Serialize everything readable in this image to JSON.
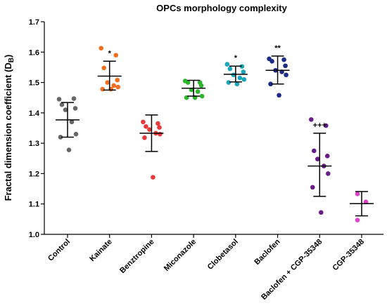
{
  "chart_data": {
    "type": "scatter",
    "title": "OPCs morphology complexity",
    "ylabel": "Fractal dimension coefficient (D",
    "ylabel_sub": "B",
    "ylabel_tail": ")",
    "ylim": [
      1.0,
      1.7
    ],
    "yticks": [
      "1.0",
      "1.1",
      "1.2",
      "1.3",
      "1.4",
      "1.5",
      "1.6",
      "1.7"
    ],
    "grid": false,
    "categories": [
      "Control",
      "Kainate",
      "Benztropine",
      "Miconazole",
      "Clobetasol",
      "Baclofen",
      "Baclofen + CGP-35348",
      "CGP-35348"
    ],
    "groups": [
      {
        "label": "Control",
        "color": "#666666",
        "mean": 1.377,
        "sd_low": 1.32,
        "sd_high": 1.434,
        "annotation": "",
        "points": [
          1.445,
          1.447,
          1.427,
          1.415,
          1.41,
          1.37,
          1.33,
          1.32,
          1.278
        ]
      },
      {
        "label": "Kainate",
        "color": "#f07020",
        "mean": 1.521,
        "sd_low": 1.475,
        "sd_high": 1.57,
        "annotation": "*",
        "points": [
          1.613,
          1.59,
          1.548,
          1.508,
          1.5,
          1.49,
          1.485,
          1.478,
          1.478
        ]
      },
      {
        "label": "Benztropine",
        "color": "#e83a3a",
        "mean": 1.333,
        "sd_low": 1.273,
        "sd_high": 1.393,
        "annotation": "",
        "points": [
          1.37,
          1.365,
          1.355,
          1.352,
          1.345,
          1.333,
          1.33,
          1.318,
          1.188
        ]
      },
      {
        "label": "Miconazole",
        "color": "#2db52d",
        "mean": 1.481,
        "sd_low": 1.455,
        "sd_high": 1.507,
        "annotation": "",
        "points": [
          1.505,
          1.5,
          1.5,
          1.49,
          1.476,
          1.47,
          1.455,
          1.45,
          1.45
        ]
      },
      {
        "label": "Clobetasol",
        "color": "#1aa5b8",
        "mean": 1.527,
        "sd_low": 1.502,
        "sd_high": 1.554,
        "annotation": "*",
        "points": [
          1.56,
          1.553,
          1.545,
          1.535,
          1.525,
          1.515,
          1.51,
          1.5,
          1.495
        ]
      },
      {
        "label": "Baclofen",
        "color": "#1c2a8a",
        "mean": 1.54,
        "sd_low": 1.495,
        "sd_high": 1.587,
        "annotation": "**",
        "points": [
          1.578,
          1.575,
          1.57,
          1.555,
          1.54,
          1.535,
          1.525,
          1.495,
          1.458
        ]
      },
      {
        "label": "Baclofen + CGP-35348",
        "color": "#6a1b8a",
        "mean": 1.225,
        "sd_low": 1.125,
        "sd_high": 1.333,
        "annotation": "+++",
        "points": [
          1.378,
          1.358,
          1.275,
          1.258,
          1.248,
          1.225,
          1.2,
          1.155,
          1.072
        ]
      },
      {
        "label": "CGP-35348",
        "color": "#e040c8",
        "mean": 1.101,
        "sd_low": 1.061,
        "sd_high": 1.141,
        "annotation": "",
        "points": [
          1.133,
          1.107,
          1.047
        ]
      }
    ]
  }
}
